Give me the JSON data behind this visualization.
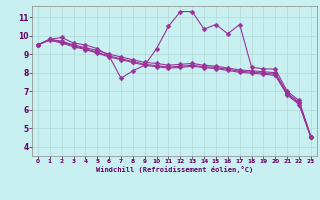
{
  "background_color": "#c8f0f0",
  "grid_color": "#cccccc",
  "line_color": "#993399",
  "marker": "D",
  "markersize": 2.5,
  "linewidth": 0.8,
  "xlabel": "Windchill (Refroidissement éolien,°C)",
  "xlim": [
    -0.5,
    23.5
  ],
  "ylim": [
    3.5,
    11.6
  ],
  "yticks": [
    4,
    5,
    6,
    7,
    8,
    9,
    10,
    11
  ],
  "xticks": [
    0,
    1,
    2,
    3,
    4,
    5,
    6,
    7,
    8,
    9,
    10,
    11,
    12,
    13,
    14,
    15,
    16,
    17,
    18,
    19,
    20,
    21,
    22,
    23
  ],
  "series": [
    {
      "x": [
        0,
        1,
        2,
        3,
        4,
        5,
        6,
        7,
        8,
        9,
        10,
        11,
        12,
        13,
        14,
        15,
        16,
        17,
        18,
        19,
        20,
        21,
        22,
        23
      ],
      "y": [
        9.5,
        9.8,
        9.9,
        9.6,
        9.5,
        9.3,
        8.9,
        7.7,
        8.1,
        8.4,
        9.3,
        10.5,
        11.3,
        11.3,
        10.35,
        10.6,
        10.1,
        10.6,
        8.3,
        8.2,
        8.2,
        7.0,
        6.5,
        4.55
      ]
    },
    {
      "x": [
        0,
        1,
        2,
        3,
        4,
        5,
        6,
        7,
        8,
        9,
        10,
        11,
        12,
        13,
        14,
        15,
        16,
        17,
        18,
        19,
        20,
        21,
        22,
        23
      ],
      "y": [
        9.5,
        9.8,
        9.7,
        9.5,
        9.35,
        9.2,
        9.0,
        8.85,
        8.7,
        8.55,
        8.5,
        8.4,
        8.45,
        8.5,
        8.4,
        8.35,
        8.25,
        8.15,
        8.1,
        8.05,
        8.0,
        6.9,
        6.4,
        4.55
      ]
    },
    {
      "x": [
        0,
        1,
        2,
        3,
        4,
        5,
        6,
        7,
        8,
        9,
        10,
        11,
        12,
        13,
        14,
        15,
        16,
        17,
        18,
        19,
        20,
        21,
        22,
        23
      ],
      "y": [
        9.5,
        9.8,
        9.65,
        9.45,
        9.3,
        9.1,
        8.9,
        8.75,
        8.6,
        8.45,
        8.38,
        8.3,
        8.35,
        8.4,
        8.32,
        8.28,
        8.18,
        8.08,
        8.03,
        7.98,
        7.92,
        6.85,
        6.35,
        4.52
      ]
    },
    {
      "x": [
        0,
        1,
        2,
        3,
        4,
        5,
        6,
        7,
        8,
        9,
        10,
        11,
        12,
        13,
        14,
        15,
        16,
        17,
        18,
        19,
        20,
        21,
        22,
        23
      ],
      "y": [
        9.5,
        9.75,
        9.6,
        9.4,
        9.25,
        9.05,
        8.85,
        8.7,
        8.55,
        8.4,
        8.32,
        8.25,
        8.28,
        8.35,
        8.27,
        8.22,
        8.12,
        8.02,
        7.97,
        7.92,
        7.85,
        6.8,
        6.28,
        4.5
      ]
    }
  ]
}
